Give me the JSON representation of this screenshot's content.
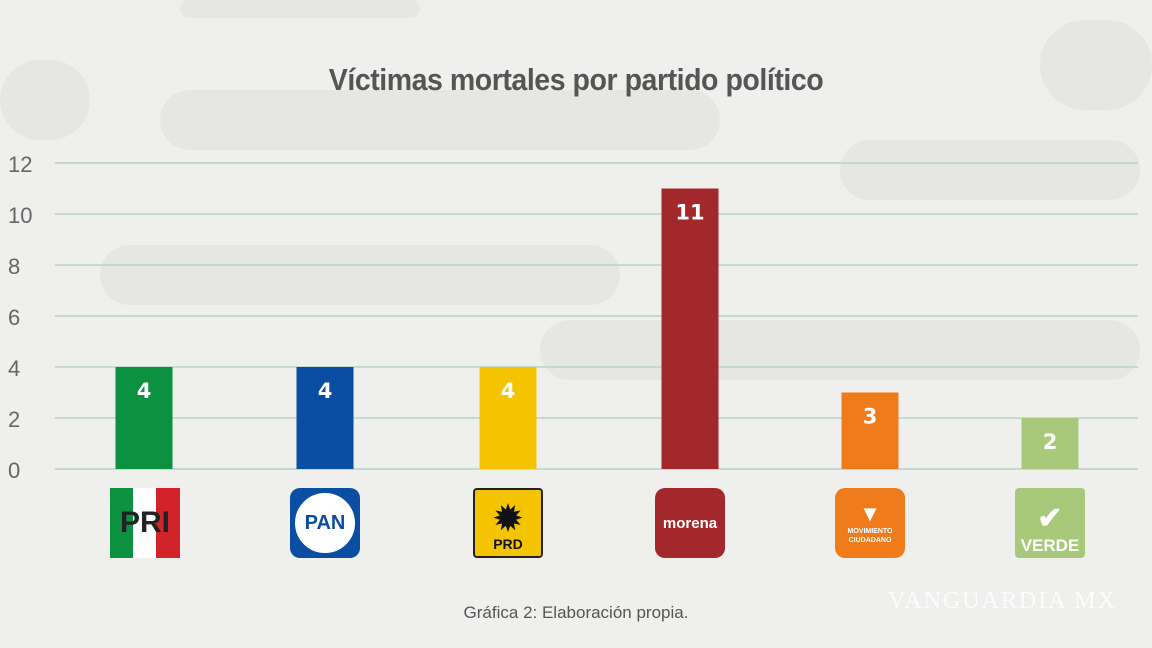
{
  "chart_data": {
    "type": "bar",
    "title": "Víctimas mortales por partido político",
    "categories": [
      "PRI",
      "PAN",
      "PRD",
      "morena",
      "Movimiento Ciudadano",
      "VERDE"
    ],
    "values": [
      4,
      4,
      4,
      11,
      3,
      2
    ],
    "colors": [
      "#0b9140",
      "#0a4ea3",
      "#f5c400",
      "#a3282b",
      "#ef7b1b",
      "#a9c97a"
    ],
    "xlabel": "",
    "ylabel": "",
    "ylim": [
      0,
      12
    ],
    "yticks": [
      0,
      2,
      4,
      6,
      8,
      10,
      12
    ],
    "grid": true,
    "legend": "none"
  },
  "logos": {
    "pri": "PRI",
    "pan": "PAN",
    "prd": "PRD",
    "morena": "morena",
    "mc_top": "MOVIMIENTO",
    "mc_bottom": "CIUDADANO",
    "verde": "VERDE"
  },
  "caption": "Gráfica 2: Elaboración propia.",
  "watermark": "VANGUARDIA MX"
}
